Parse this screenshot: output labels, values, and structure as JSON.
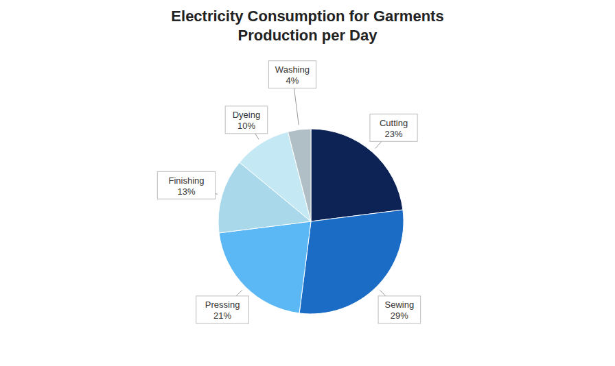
{
  "chart_data": {
    "type": "pie",
    "title": "Electricity Consumption for Garments\nProduction per Day",
    "categories": [
      "Cutting",
      "Sewing",
      "Pressing",
      "Finishing",
      "Dyeing",
      "Washing"
    ],
    "values": [
      23,
      29,
      21,
      13,
      10,
      4
    ],
    "value_labels": [
      "23%",
      "29%",
      "21%",
      "13%",
      "10%",
      "4%"
    ],
    "data_labels": true,
    "colors": [
      "#0d2355",
      "#1a6cc4",
      "#5bb8f5",
      "#a8d8ea",
      "#c5e8f5",
      "#b0bec5"
    ]
  }
}
